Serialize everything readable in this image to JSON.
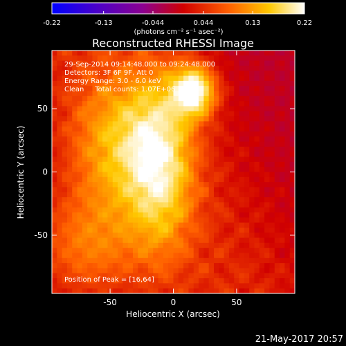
{
  "chart_data": {
    "type": "heatmap",
    "title": "Reconstructed RHESSI Image",
    "xlabel": "Heliocentric X (arcsec)",
    "ylabel": "Heliocentric Y (arcsec)",
    "xlim": [
      -96,
      96
    ],
    "ylim": [
      -96,
      96
    ],
    "xticks": [
      -50,
      0,
      50
    ],
    "yticks": [
      -50,
      0,
      50
    ],
    "colorbar": {
      "ticks": [
        "-0.22",
        "-0.13",
        "-0.044",
        "0.044",
        "0.13",
        "0.22"
      ],
      "tick_values": [
        -0.22,
        -0.13,
        -0.044,
        0.044,
        0.13,
        0.22
      ],
      "range": [
        -0.22,
        0.22
      ],
      "unit_label": "(photons cm⁻² s⁻¹ asec⁻²)",
      "colormap": [
        "#0000ff",
        "#4b00c8",
        "#8c0090",
        "#d00000",
        "#ff6000",
        "#ffc800",
        "#ffffff"
      ]
    },
    "info_lines": [
      "29-Sep-2014 09:14:48.000 to 09:24:48.000",
      "Detectors: 3F 6F 9F, Att 0",
      "Energy Range: 3.0 - 6.0 keV",
      "Clean     Total counts: 1.07E+06"
    ],
    "peak": {
      "label": "Position of Peak = [16,64]",
      "x": 16,
      "y": 64
    },
    "sources": [
      {
        "x": 16,
        "y": 64,
        "amplitude": 0.22,
        "sx": 12,
        "sy": 14
      },
      {
        "x": -40,
        "y": 20,
        "amplitude": 0.12,
        "sx": 30,
        "sy": 40
      },
      {
        "x": -10,
        "y": 5,
        "amplitude": 0.13,
        "sx": 18,
        "sy": 50
      },
      {
        "x": -70,
        "y": -60,
        "amplitude": 0.09,
        "sx": 30,
        "sy": 30
      }
    ],
    "timestamp": "21-May-2017 20:57"
  }
}
